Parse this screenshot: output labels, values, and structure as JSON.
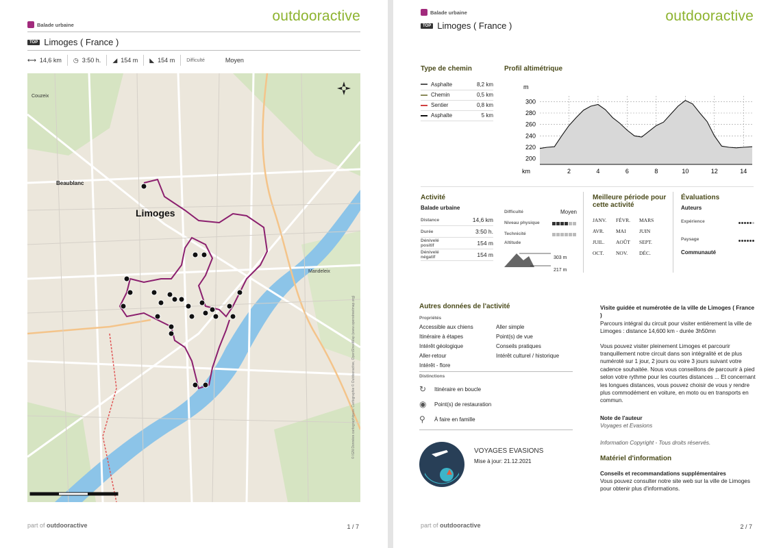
{
  "brand": "outdooractive",
  "category": "Balade urbaine",
  "title": "Limoges ( France )",
  "top_badge": "TOP",
  "stats": {
    "distance": "14,6 km",
    "duration": "3:50 h.",
    "ascent": "154 m",
    "descent": "154 m",
    "difficulty_label": "Difficulté",
    "difficulty": "Moyen"
  },
  "map": {
    "labels": [
      "Limoges",
      "Beaublanc",
      "Mandeleix",
      "Couzeix"
    ],
    "attribution": "© IGN Données cartographiques: Cartographie © Outdooractive, OpenStreetMap (www.openstreetmap.org)"
  },
  "footer": {
    "prefix": "part of",
    "brand": "outdooractive"
  },
  "page1_num": "1 / 7",
  "page2_num": "2 / 7",
  "path_types": {
    "heading": "Type de chemin",
    "rows": [
      {
        "name": "Asphalte",
        "value": "8,2 km",
        "color": "#555555"
      },
      {
        "name": "Chemin",
        "value": "0,5 km",
        "color": "#8a8a5a"
      },
      {
        "name": "Sentier",
        "value": "0,8 km",
        "color": "#d04040"
      },
      {
        "name": "Asphalte",
        "value": "5 km",
        "color": "#111111"
      }
    ]
  },
  "profile": {
    "heading": "Profil altimétrique",
    "y_unit": "m",
    "x_unit": "km",
    "y_ticks": [
      "300",
      "280",
      "260",
      "240",
      "220",
      "200"
    ],
    "x_ticks": [
      "2",
      "4",
      "6",
      "8",
      "10",
      "12",
      "14"
    ]
  },
  "chart_data": {
    "type": "area",
    "title": "Profil altimétrique",
    "xlabel": "km",
    "ylabel": "m",
    "xlim": [
      0,
      14.6
    ],
    "ylim": [
      190,
      310
    ],
    "x": [
      0,
      0.5,
      1,
      1.5,
      2,
      2.5,
      3,
      3.5,
      4,
      4.5,
      5,
      5.5,
      6,
      6.5,
      7,
      7.5,
      8,
      8.5,
      9,
      9.5,
      10,
      10.5,
      11,
      11.5,
      12,
      12.5,
      13,
      13.5,
      14,
      14.6
    ],
    "y": [
      218,
      220,
      221,
      240,
      258,
      272,
      285,
      292,
      295,
      286,
      272,
      262,
      250,
      240,
      238,
      248,
      258,
      264,
      278,
      292,
      302,
      296,
      280,
      265,
      240,
      222,
      220,
      219,
      220,
      221
    ]
  },
  "activity": {
    "heading": "Activité",
    "type": "Balade urbaine",
    "rows": [
      {
        "label": "Distance",
        "value": "14,6 km"
      },
      {
        "label": "Durée",
        "value": "3:50 h."
      },
      {
        "label": "Dénivelé positif",
        "value": "154 m"
      },
      {
        "label": "Dénivelé négatif",
        "value": "154 m"
      }
    ],
    "difficulty_label": "Difficulté",
    "difficulty": "Moyen",
    "physical_label": "Niveau physique",
    "physical_level": 0.6,
    "technique_label": "Technicité",
    "technique_level": 0.0,
    "altitude_label": "Altitude",
    "alt_max": "303 m",
    "alt_min": "217 m"
  },
  "season": {
    "heading": "Meilleure période pour cette activité",
    "months": [
      "JANV.",
      "FÉVR.",
      "MARS",
      "AVR.",
      "MAI",
      "JUIN",
      "JUIL.",
      "AOÛT",
      "SEPT.",
      "OCT.",
      "NOV.",
      "DÉC."
    ]
  },
  "ratings": {
    "heading": "Évaluations",
    "authors": "Auteurs",
    "experience": "Expérience",
    "experience_level": 0.8,
    "landscape": "Paysage",
    "landscape_level": 1.0,
    "community": "Communauté"
  },
  "other": {
    "heading": "Autres données de l'activité",
    "props_label": "Propriétés",
    "props": [
      "Accessible aux chiens",
      "Aller simple",
      "Itinéraire à étapes",
      "Point(s) de vue",
      "Intérêt géologique",
      "Conseils pratiques",
      "Aller-retour",
      "Intérêt culturel / historique",
      "Intérêt - flore"
    ],
    "dist_label": "Distinctions",
    "dist": [
      "Itinéraire en boucle",
      "Point(s) de restauration",
      "À faire en famille"
    ]
  },
  "author": {
    "name": "VOYAGES EVASIONS",
    "updated": "Mise à jour: 21.12.2021"
  },
  "desc": {
    "title": "Visite guidée et numérotée de la ville de Limoges ( France )",
    "p1": "Parcours intégral du circuit pour visiter entièrement la ville de Limoges : distance 14,600 km - durée 3h50mn",
    "p2": "Vous pouvez visiter pleinement Limoges et parcourir tranquillement notre circuit dans son intégralité et de plus numéroté sur 1 jour, 2 jours ou voire 3 jours suivant votre cadence souhaitée. Nous vous conseillons de parcourir à pied selon votre rythme pour les courtes distances ... Et concernant les longues distances, vous pouvez choisir de vous y rendre plus commodément en voiture, en moto ou en transports en commun.",
    "note_label": "Note de l'auteur",
    "note": "Voyages et Evasions",
    "copyright": "Information Copyright - Tous droits réservés.",
    "material_heading": "Matériel d'information",
    "advice_heading": "Conseils et recommandations supplémentaires",
    "advice": "Vous pouvez consulter notre site web sur la ville de Limoges pour obtenir plus d'informations."
  }
}
